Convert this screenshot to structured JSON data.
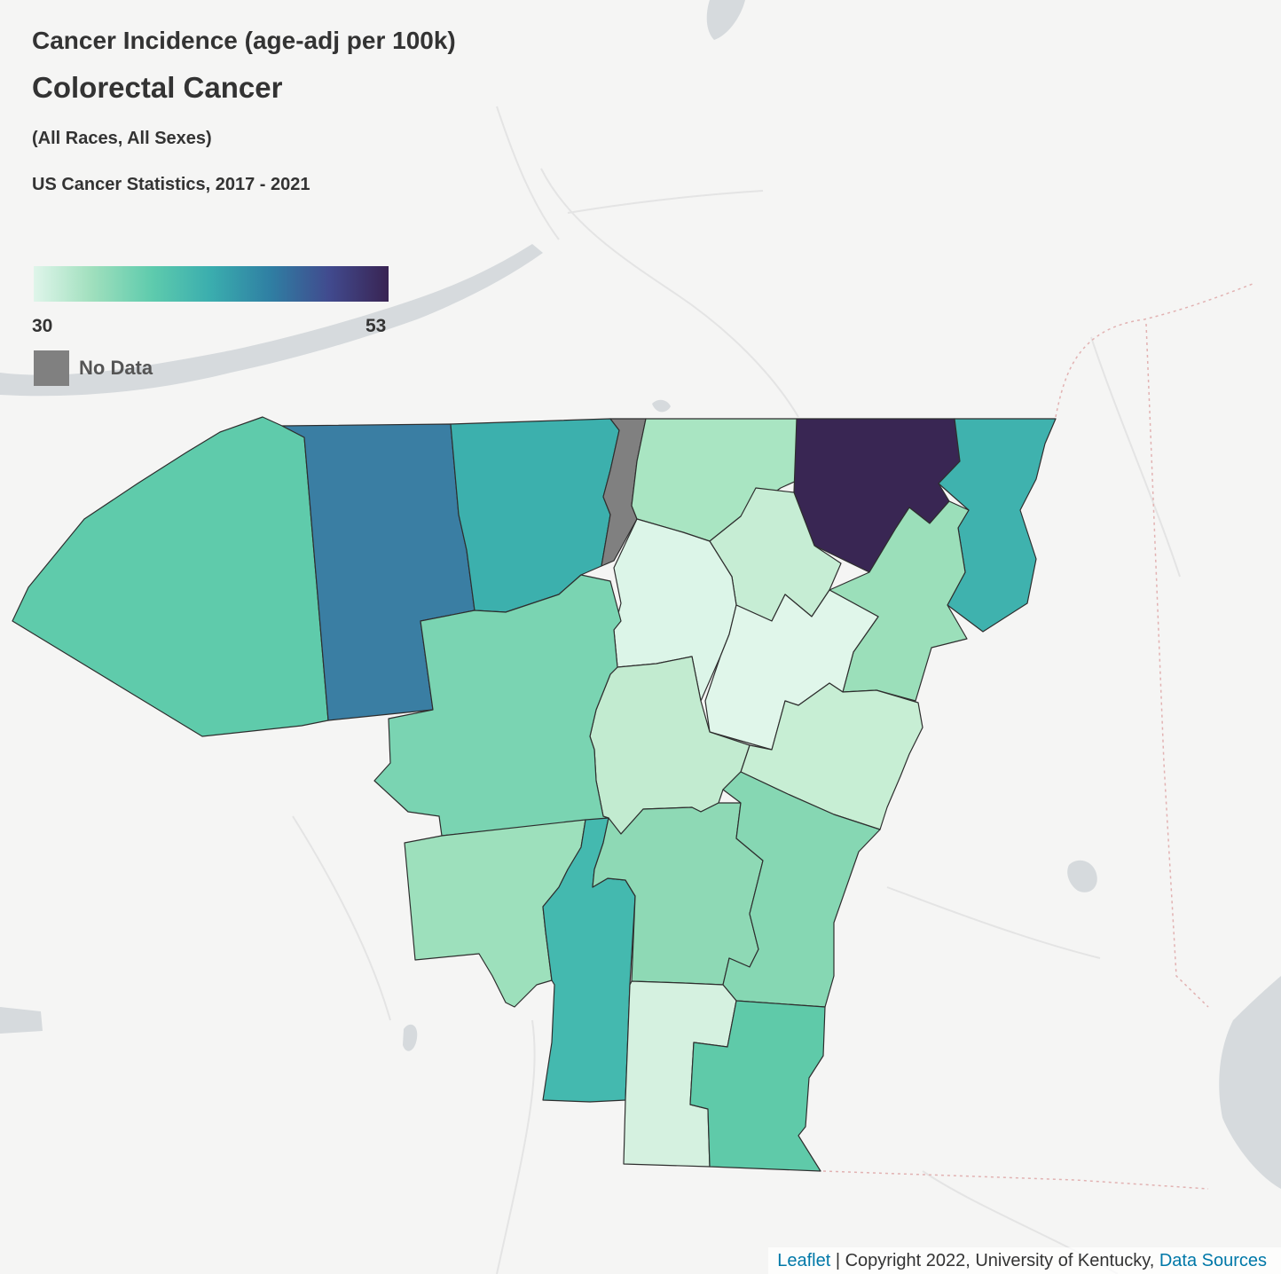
{
  "legend": {
    "title": "Cancer Incidence (age-adj per 100k)",
    "subtitle": "Colorectal Cancer",
    "demographic": "(All Races, All Sexes)",
    "source_line": "US Cancer Statistics, 2017 - 2021",
    "min_label": "30",
    "max_label": "53",
    "no_data_label": "No Data",
    "ramp_colors": [
      "#dff5ea",
      "#9fdfbd",
      "#5ecbad",
      "#3aadae",
      "#2f7fa3",
      "#414a8e",
      "#392453"
    ],
    "no_data_color": "#808080"
  },
  "attribution": {
    "leaflet_link": "Leaflet",
    "text": " | Copyright 2022, University of Kentucky, ",
    "sources_link": "Data Sources"
  },
  "colors": {
    "basemap": "#f5f5f4",
    "water": "#d6dadd",
    "roads": "#e4e4e4",
    "border": "#e2b2b2",
    "outline": "#2e2e2e"
  }
}
